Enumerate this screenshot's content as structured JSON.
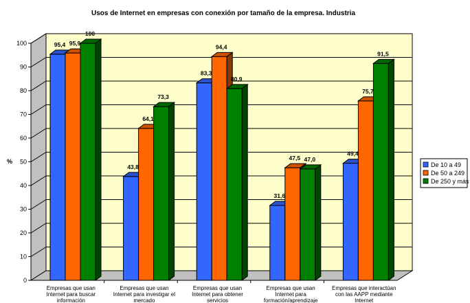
{
  "chart_data": {
    "type": "bar",
    "title": "Usos de Internet en empresas con conexión por tamaño de la empresa. Industria",
    "ylabel": "%",
    "xlabel": "",
    "ylim": [
      0,
      100
    ],
    "yticks": [
      0,
      10,
      20,
      30,
      40,
      50,
      60,
      70,
      80,
      90,
      100
    ],
    "grid": true,
    "legend_position": "right",
    "style": "3d-clustered-column",
    "categories": [
      [
        "Empresas que usan",
        "Internet para buscar",
        "información"
      ],
      [
        "Empresas que usan",
        "Internet para investigar el",
        "mercado"
      ],
      [
        "Empresas que usan",
        "Internet para obtener",
        "servicios"
      ],
      [
        "Empresas que usan",
        "Internet para",
        "formación/aprendizaje"
      ],
      [
        "Empresas que interactúan",
        "con las AAPP mediante",
        "Internet"
      ]
    ],
    "series": [
      {
        "name": "De 10 a 49",
        "color": "#3366FF",
        "values": [
          95.4,
          43.8,
          83.3,
          31.6,
          49.4
        ],
        "labels": [
          "95,4",
          "43,8",
          "83,3",
          "31,6",
          "49,4"
        ]
      },
      {
        "name": "De 50 a 249",
        "color": "#FF6600",
        "values": [
          95.9,
          64.1,
          94.4,
          47.5,
          75.7
        ],
        "labels": [
          "95,9",
          "64,1",
          "94,4",
          "47,5",
          "75,7"
        ]
      },
      {
        "name": "De 250 y más",
        "color": "#008000",
        "values": [
          100,
          73.3,
          80.9,
          47.0,
          91.5
        ],
        "labels": [
          "100",
          "73,3",
          "80,9",
          "47,0",
          "91,5"
        ]
      }
    ],
    "wall_color": "#FFFFCC"
  }
}
